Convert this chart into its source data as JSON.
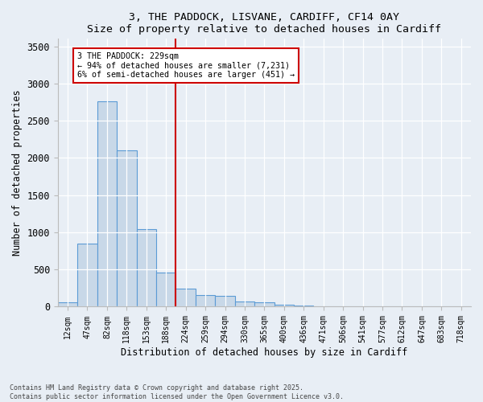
{
  "title1": "3, THE PADDOCK, LISVANE, CARDIFF, CF14 0AY",
  "title2": "Size of property relative to detached houses in Cardiff",
  "xlabel": "Distribution of detached houses by size in Cardiff",
  "ylabel": "Number of detached properties",
  "bar_color": "#c8d8e8",
  "bar_edgecolor": "#5b9bd5",
  "categories": [
    "12sqm",
    "47sqm",
    "82sqm",
    "118sqm",
    "153sqm",
    "188sqm",
    "224sqm",
    "259sqm",
    "294sqm",
    "330sqm",
    "365sqm",
    "400sqm",
    "436sqm",
    "471sqm",
    "506sqm",
    "541sqm",
    "577sqm",
    "612sqm",
    "647sqm",
    "683sqm",
    "718sqm"
  ],
  "values": [
    60,
    850,
    2760,
    2100,
    1040,
    460,
    240,
    160,
    150,
    70,
    55,
    30,
    12,
    8,
    4,
    3,
    3,
    2,
    1,
    1,
    0
  ],
  "vline_color": "#cc0000",
  "annotation_text": "3 THE PADDOCK: 229sqm\n← 94% of detached houses are smaller (7,231)\n6% of semi-detached houses are larger (451) →",
  "ylim": [
    0,
    3600
  ],
  "yticks": [
    0,
    500,
    1000,
    1500,
    2000,
    2500,
    3000,
    3500
  ],
  "footer1": "Contains HM Land Registry data © Crown copyright and database right 2025.",
  "footer2": "Contains public sector information licensed under the Open Government Licence v3.0.",
  "bg_color": "#e8eef5",
  "plot_bg_color": "#e8eef5"
}
